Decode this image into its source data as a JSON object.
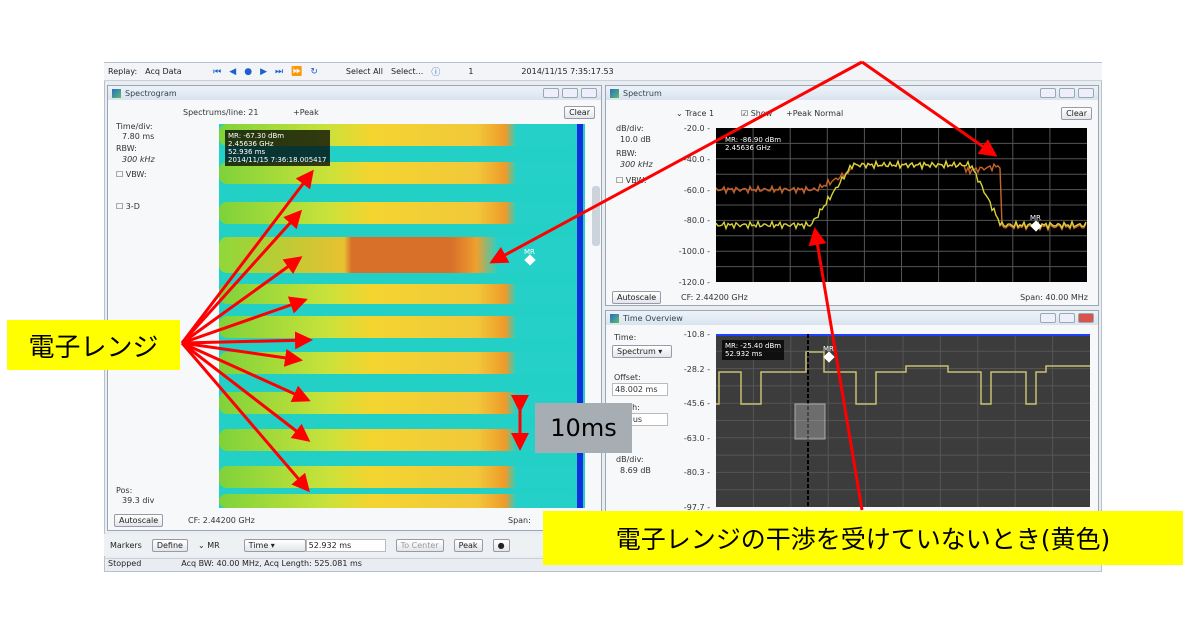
{
  "toolbar": {
    "replay_label": "Replay:",
    "replay_value": "Acq Data",
    "select_all": "Select All",
    "select": "Select...",
    "record_index": "1",
    "timestamp": "2014/11/15 7:35:17.53"
  },
  "spectrogram": {
    "title": "Spectrogram",
    "spectrums_per_line": "Spectrums/line: 21",
    "detector": "+Peak",
    "clear": "Clear",
    "time_div_label": "Time/div:",
    "time_div_value": "7.80 ms",
    "rbw_label": "RBW:",
    "rbw_value": "300 kHz",
    "vbw_label": "VBW:",
    "3d_label": "3-D",
    "pos_label": "Pos:",
    "pos_value": "39.3 div",
    "autoscale": "Autoscale",
    "cf": "CF: 2.44200 GHz",
    "span": "Span:",
    "marker_readout": [
      "MR: -67.30 dBm",
      "2.45636 GHz",
      "52.936 ms",
      "2014/11/15 7:36:18.005417"
    ],
    "marker_label": "MR"
  },
  "spectrum": {
    "title": "Spectrum",
    "trace": "Trace 1",
    "show": "Show",
    "detector": "+Peak Normal",
    "clear": "Clear",
    "db_div_label": "dB/div:",
    "db_div_value": "10.0 dB",
    "rbw_label": "RBW:",
    "rbw_value": "300 kHz",
    "vbw_label": "VBW:",
    "y_ticks": [
      "-20.0",
      "-40.0",
      "-60.0",
      "-80.0",
      "-100.0",
      "-120.0"
    ],
    "marker_readout": [
      "MR: -86.90 dBm",
      "2.45636 GHz"
    ],
    "marker_label": "MR",
    "autoscale": "Autoscale",
    "cf": "CF: 2.44200 GHz",
    "span": "Span: 40.00 MHz",
    "colors": {
      "normal": "#d8d23a",
      "interfered": "#c8642a"
    }
  },
  "time_overview": {
    "title": "Time Overview",
    "time_label": "Time:",
    "time_select": "Spectrum",
    "offset_label": "Offset:",
    "offset_value": "48.002 ms",
    "width_label": "Width:",
    "width_value": "596 us",
    "db_div_label": "dB/div:",
    "db_div_value": "8.69 dB",
    "y_ticks": [
      "-10.8",
      "-28.2",
      "-45.6",
      "-63.0",
      "-80.3",
      "-97.7"
    ],
    "marker_readout": [
      "MR: -25.40 dBm",
      "52.932 ms"
    ],
    "marker_label": "MR"
  },
  "markers_bar": {
    "label": "Markers",
    "define": "Define",
    "marker": "MR",
    "domain_select": "Time",
    "value": "52.932 ms",
    "to_center": "To Center",
    "peak": "Peak"
  },
  "status_bar": {
    "state": "Stopped",
    "acq": "Acq BW: 40.00 MHz, Acq Length: 525.081 ms"
  },
  "annotations": {
    "microwave": "電子レンジ",
    "period": "10ms",
    "no_interference": "電子レンジの干渉を受けていないとき(黄色)",
    "arrow_color": "#ff0000",
    "callout_color": "#ffff00"
  }
}
